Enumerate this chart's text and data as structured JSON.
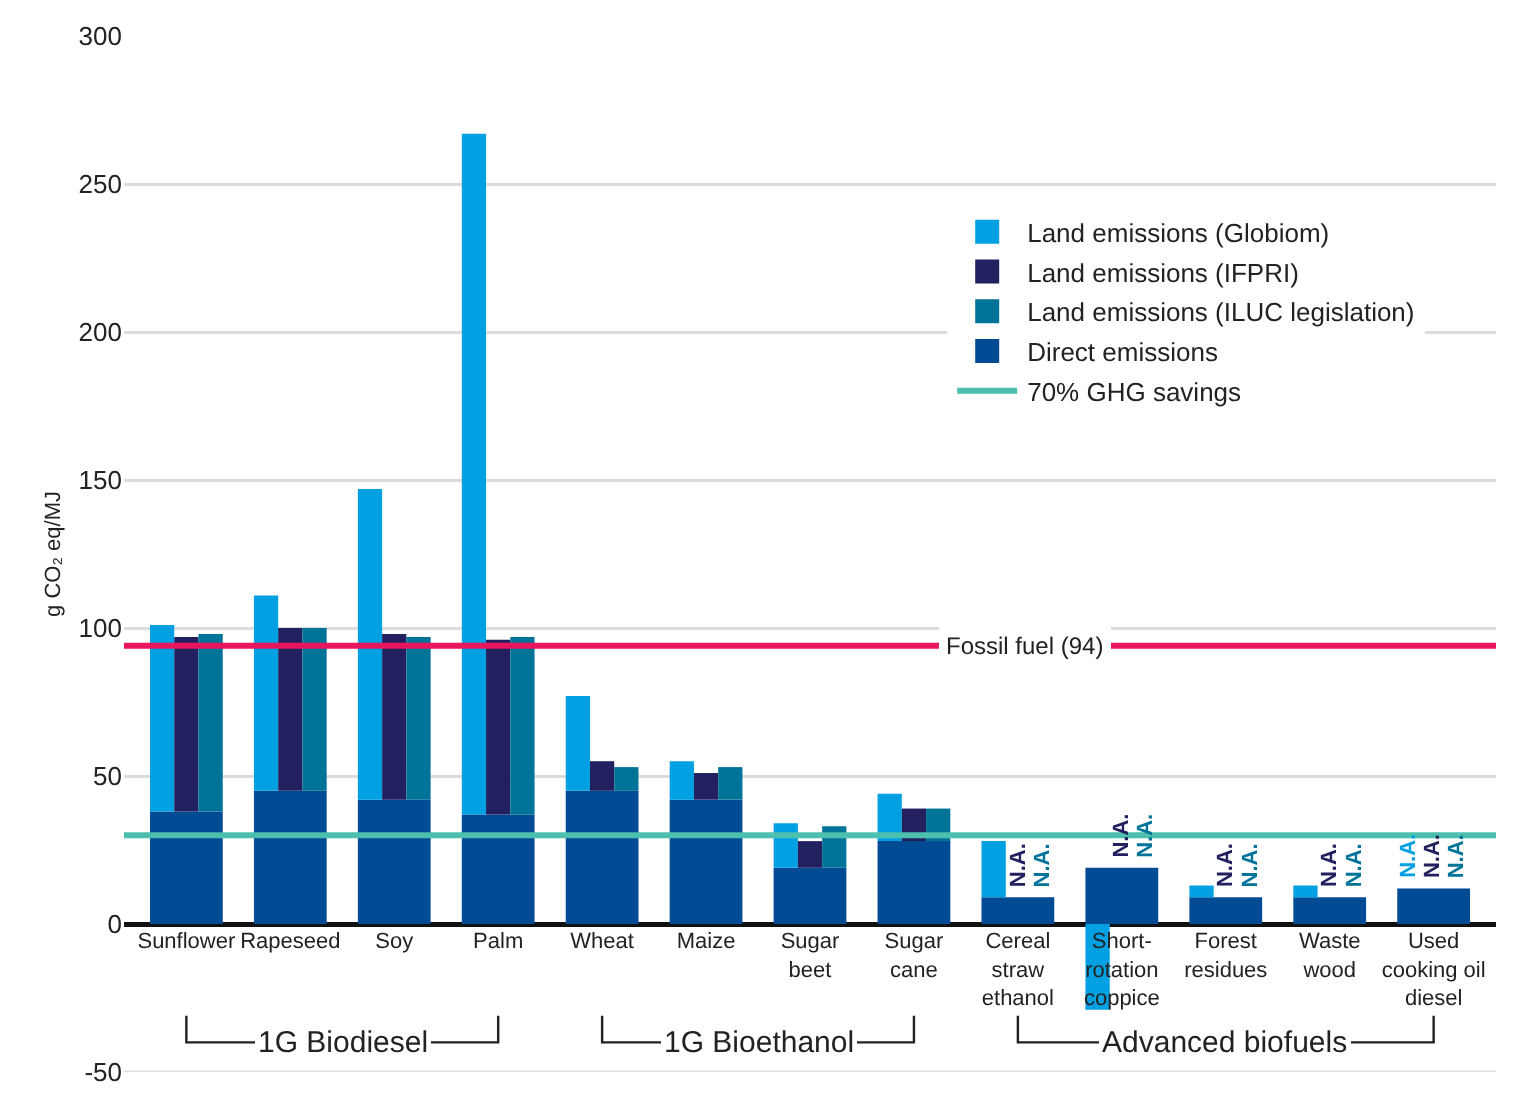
{
  "chart_data": {
    "type": "bar",
    "ylabel": "g CO₂ eq/MJ",
    "categories": [
      "Sunflower",
      "Rapeseed",
      "Soy",
      "Palm",
      "Wheat",
      "Maize",
      "Sugar beet",
      "Sugar cane",
      "Cereal straw ethanol",
      "Short-rotation coppice",
      "Forest residues",
      "Waste wood",
      "Used cooking oil diesel"
    ],
    "series": [
      {
        "name": "Direct emissions",
        "color": "#004b93",
        "values": [
          38,
          45,
          42,
          37,
          45,
          42,
          19,
          28,
          9,
          19,
          9,
          9,
          12
        ]
      },
      {
        "name": "Land emissions (Globiom)",
        "color": "#00a0e3",
        "values": [
          63,
          66,
          105,
          230,
          32,
          13,
          15,
          16,
          19,
          -29,
          4,
          4,
          null
        ],
        "base": [
          38,
          45,
          42,
          37,
          45,
          42,
          19,
          28,
          9,
          0,
          9,
          9,
          null
        ],
        "value_labels": [
          null,
          null,
          null,
          null,
          null,
          null,
          null,
          null,
          null,
          null,
          null,
          null,
          "N.A."
        ]
      },
      {
        "name": "Land emissions (IFPRI)",
        "color": "#22205f",
        "values": [
          59,
          55,
          56,
          59,
          10,
          9,
          9,
          11,
          null,
          null,
          null,
          null,
          null
        ],
        "base": [
          38,
          45,
          42,
          37,
          45,
          42,
          19,
          28,
          null,
          null,
          null,
          null,
          null
        ],
        "value_labels": [
          null,
          null,
          null,
          null,
          null,
          null,
          null,
          null,
          "N.A.",
          "N.A.",
          "N.A.",
          "N.A.",
          "N.A."
        ]
      },
      {
        "name": "Land emissions (ILUC legislation)",
        "color": "#007398",
        "values": [
          60,
          55,
          55,
          60,
          8,
          11,
          14,
          11,
          null,
          null,
          null,
          null,
          null
        ],
        "base": [
          38,
          45,
          42,
          37,
          45,
          42,
          19,
          28,
          null,
          null,
          null,
          null,
          null
        ],
        "value_labels": [
          null,
          null,
          null,
          null,
          null,
          null,
          null,
          null,
          "N.A.",
          "N.A.",
          "N.A.",
          "N.A.",
          "N.A."
        ]
      }
    ],
    "ylim": [
      -50,
      300
    ],
    "yticks": [
      -50,
      0,
      50,
      100,
      150,
      200,
      250,
      300
    ],
    "grid": "y",
    "legend": "top right",
    "ref_lines": [
      {
        "axis": "y",
        "value": 94,
        "label": "Fossil fuel (94)",
        "color": "#e8175d"
      },
      {
        "axis": "y",
        "value": 30,
        "label": "70% GHG savings",
        "color": "#4dbfae"
      }
    ],
    "annotations": [
      "1G Biodiesel",
      "1G Bioethanol",
      "Advanced biofuels"
    ]
  }
}
